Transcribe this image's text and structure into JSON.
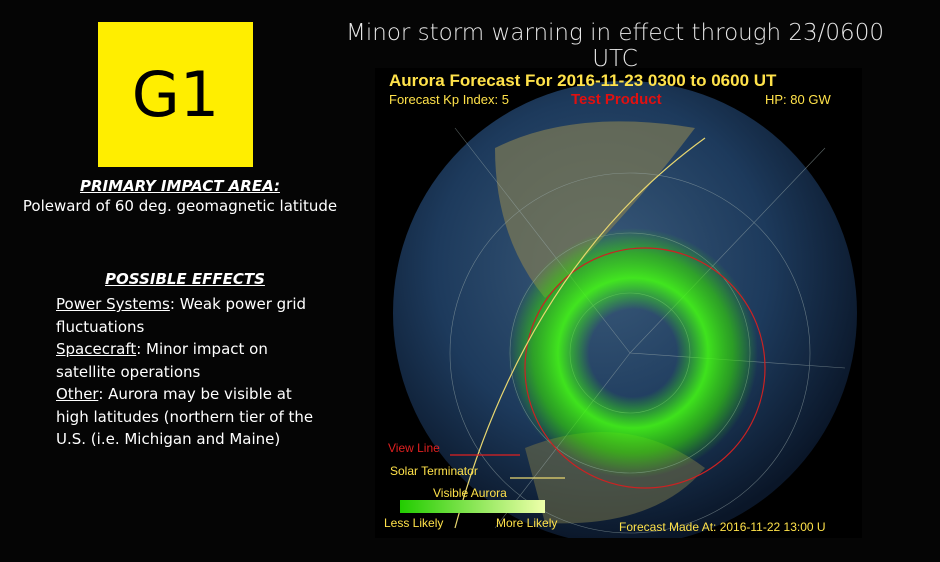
{
  "badge": "G1",
  "title": "Minor storm warning in effect through 23/0600 UTC",
  "impact": {
    "heading": "PRIMARY IMPACT AREA:",
    "text": "Poleward of 60 deg. geomagnetic latitude"
  },
  "effects": {
    "heading": "POSSIBLE EFFECTS",
    "items": [
      {
        "label": "Power Systems",
        "text": ": Weak power grid fluctuations"
      },
      {
        "label": "Spacecraft",
        "text": ": Minor impact on satellite operations"
      },
      {
        "label": "Other",
        "text": ": Aurora may be visible at high latitudes (northern tier of the U.S. (i.e. Michigan and Maine)"
      }
    ]
  },
  "map": {
    "title": "Aurora Forecast For  2016-11-23 0300 to 0600 UT",
    "kp": "Forecast Kp Index: 5",
    "test": "Test Product",
    "hp": "HP:  80 GW",
    "view_line": "View Line",
    "terminator": "Solar Terminator",
    "scale_title": "Visible Aurora",
    "less": "Less Likely",
    "more": "More Likely",
    "made": "Forecast Made At: 2016-11-22 13:00 U"
  }
}
